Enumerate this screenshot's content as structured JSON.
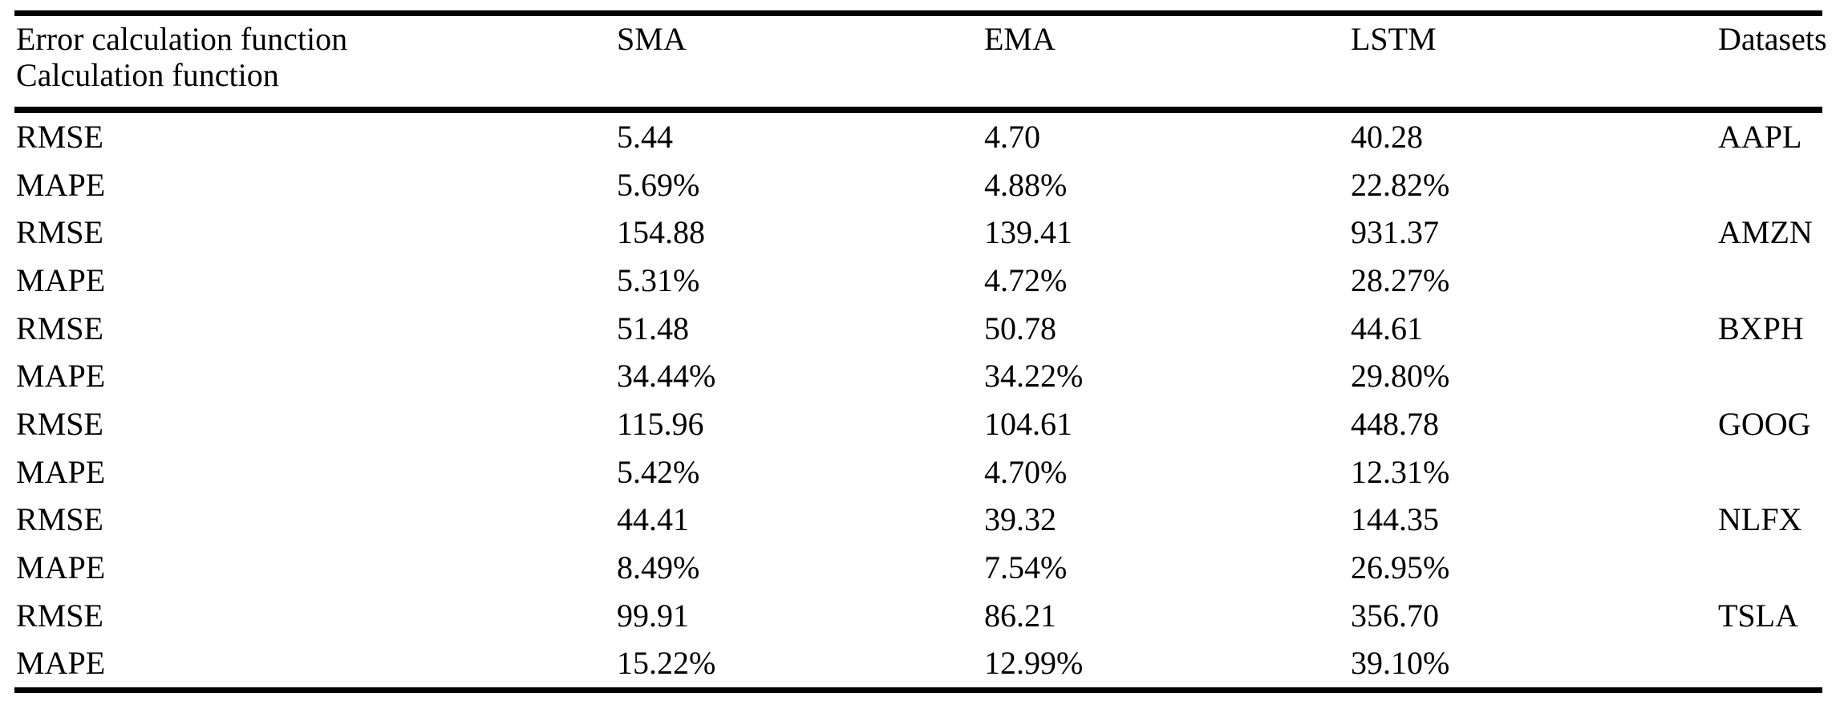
{
  "page": {
    "background_color": "#ffffff",
    "text_color": "#000000",
    "rule_color": "#000000"
  },
  "table": {
    "header": {
      "metric_line1": "Error calculation function",
      "metric_line2": "Calculation function",
      "sma": "SMA",
      "ema": "EMA",
      "lstm": "LSTM",
      "datasets": "Datasets"
    },
    "rows": [
      {
        "metric": "RMSE",
        "sma": "5.44",
        "ema": "4.70",
        "lstm": "40.28",
        "dataset": "AAPL"
      },
      {
        "metric": "MAPE",
        "sma": "5.69%",
        "ema": "4.88%",
        "lstm": "22.82%",
        "dataset": ""
      },
      {
        "metric": "RMSE",
        "sma": "154.88",
        "ema": "139.41",
        "lstm": "931.37",
        "dataset": "AMZN"
      },
      {
        "metric": "MAPE",
        "sma": "5.31%",
        "ema": "4.72%",
        "lstm": "28.27%",
        "dataset": ""
      },
      {
        "metric": "RMSE",
        "sma": "51.48",
        "ema": "50.78",
        "lstm": "44.61",
        "dataset": "BXPH"
      },
      {
        "metric": "MAPE",
        "sma": "34.44%",
        "ema": "34.22%",
        "lstm": "29.80%",
        "dataset": ""
      },
      {
        "metric": "RMSE",
        "sma": "115.96",
        "ema": "104.61",
        "lstm": "448.78",
        "dataset": "GOOG"
      },
      {
        "metric": "MAPE",
        "sma": "5.42%",
        "ema": "4.70%",
        "lstm": "12.31%",
        "dataset": ""
      },
      {
        "metric": "RMSE",
        "sma": "44.41",
        "ema": "39.32",
        "lstm": "144.35",
        "dataset": "NLFX"
      },
      {
        "metric": "MAPE",
        "sma": "8.49%",
        "ema": "7.54%",
        "lstm": "26.95%",
        "dataset": ""
      },
      {
        "metric": "RMSE",
        "sma": "99.91",
        "ema": "86.21",
        "lstm": "356.70",
        "dataset": "TSLA"
      },
      {
        "metric": "MAPE",
        "sma": "15.22%",
        "ema": "12.99%",
        "lstm": "39.10%",
        "dataset": ""
      }
    ]
  }
}
